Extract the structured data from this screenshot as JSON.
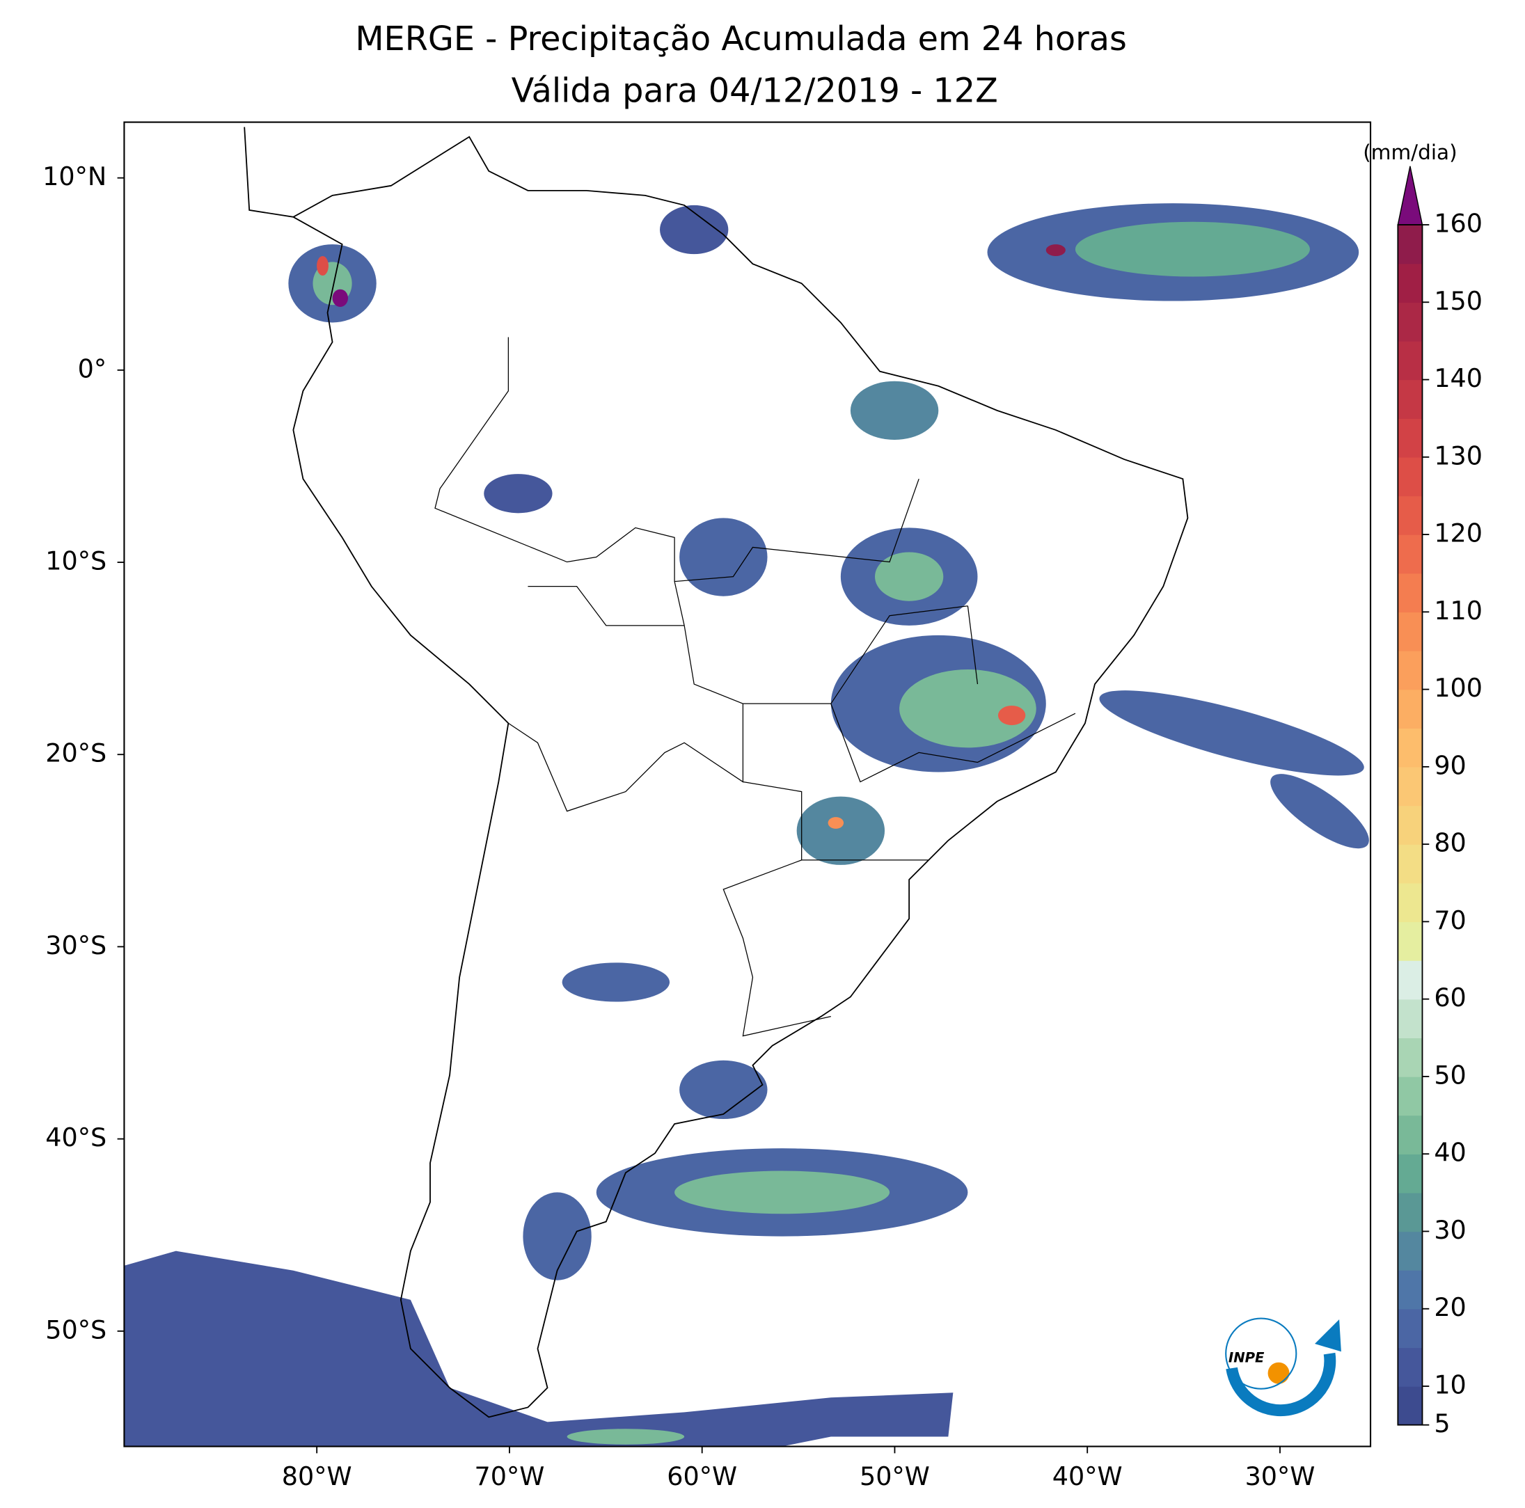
{
  "title": "MERGE - Precipitação Acumulada em 24 horas",
  "subtitle": "Válida para 04/12/2019 - 12Z",
  "map": {
    "type": "map",
    "xlim": [
      -90,
      -25.3
    ],
    "ylim": [
      -56,
      12.9
    ],
    "xticks": [
      {
        "value": -80,
        "label": "80°W"
      },
      {
        "value": -70,
        "label": "70°W"
      },
      {
        "value": -60,
        "label": "60°W"
      },
      {
        "value": -50,
        "label": "50°W"
      },
      {
        "value": -40,
        "label": "40°W"
      },
      {
        "value": -30,
        "label": "30°W"
      }
    ],
    "yticks": [
      {
        "value": 10,
        "label": "10°N"
      },
      {
        "value": 0,
        "label": "0°"
      },
      {
        "value": -10,
        "label": "10°S"
      },
      {
        "value": -20,
        "label": "20°S"
      },
      {
        "value": -30,
        "label": "30°S"
      },
      {
        "value": -40,
        "label": "40°S"
      },
      {
        "value": -50,
        "label": "50°S"
      }
    ],
    "colorbar": {
      "label": "(mm/dia)",
      "lim": [
        5,
        160
      ],
      "ticks": [
        5,
        10,
        20,
        30,
        40,
        50,
        60,
        70,
        80,
        90,
        100,
        110,
        120,
        130,
        140,
        150,
        160
      ],
      "colors": [
        "#3d4b8f",
        "#45579b",
        "#4b66a4",
        "#4f76a8",
        "#54879f",
        "#5a9895",
        "#64aa93",
        "#79b998",
        "#90c8a4",
        "#a9d5b4",
        "#c3e2cc",
        "#dbeee5",
        "#e5eea0",
        "#ede790",
        "#f3dd85",
        "#f7d27b",
        "#fbc774",
        "#fdbd6c",
        "#fcae63",
        "#fb9f5c",
        "#f88f55",
        "#f47d50",
        "#ee6c4d",
        "#e65c49",
        "#dd4e47",
        "#d24246",
        "#c53845",
        "#b82f45",
        "#ab2846",
        "#a01f45",
        "#8f1c4b"
      ],
      "extend_color": "#7a0b7b"
    },
    "logo": "INPE"
  }
}
